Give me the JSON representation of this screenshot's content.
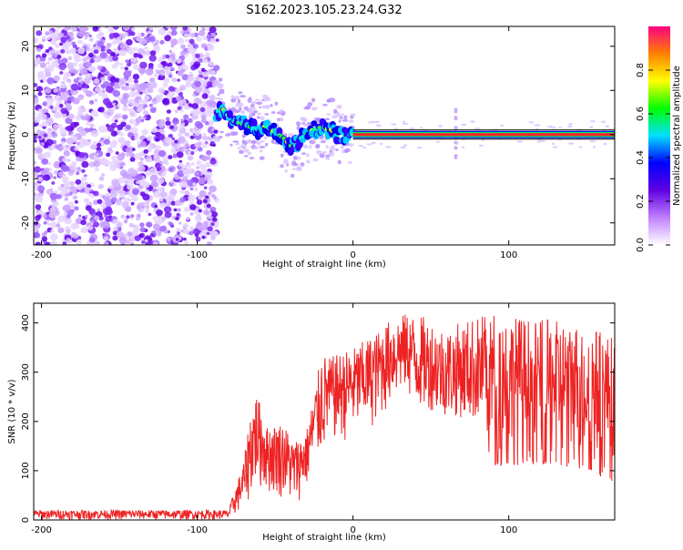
{
  "title": "S162.2023.105.23.24.G32",
  "chart_data": [
    {
      "type": "heatmap",
      "xlabel": "Height of straight line (km)",
      "ylabel": "Frequency (Hz)",
      "xlim": [
        -205,
        168
      ],
      "ylim": [
        -25,
        24.5
      ],
      "x_ticks": [
        -200,
        -100,
        0,
        100
      ],
      "y_ticks": [
        20,
        10,
        0,
        -10,
        -20
      ],
      "colorbar": {
        "label": "Normalized spectral amplitude",
        "range": [
          0,
          1
        ],
        "ticks": [
          "0.0",
          "0.2",
          "0.4",
          "0.6",
          "0.8"
        ],
        "tick_values": [
          0.0,
          0.2,
          0.4,
          0.6,
          0.8
        ],
        "colors": [
          "#ffffff",
          "#c080ff",
          "#6000e0",
          "#0000ff",
          "#00e0ff",
          "#00ff00",
          "#ffff00",
          "#ff8000",
          "#ff0080"
        ]
      },
      "ridge": {
        "x": [
          -88,
          -84,
          -80,
          -76,
          -72,
          -68,
          -64,
          -60,
          -56,
          -52,
          -48,
          -44,
          -40,
          -37,
          -34,
          -30,
          -26,
          -22,
          -18,
          -14,
          -10,
          -6,
          -2,
          0,
          20,
          60,
          100,
          140,
          168
        ],
        "y": [
          5,
          6,
          4,
          3,
          2.5,
          2,
          1.5,
          1,
          2,
          1,
          0,
          -1,
          -2.5,
          -2.5,
          -1,
          0,
          1,
          1.5,
          1.5,
          1,
          0,
          0,
          0,
          0,
          0,
          0,
          0,
          0,
          0
        ]
      },
      "grid": false
    },
    {
      "type": "line",
      "xlabel": "Height of straight line (km)",
      "ylabel": "SNR (10 * v/v)",
      "xlim": [
        -205,
        168
      ],
      "ylim": [
        0,
        440
      ],
      "x_ticks": [
        -200,
        -100,
        0,
        100
      ],
      "y_ticks": [
        0,
        100,
        200,
        300,
        400
      ],
      "series": [
        {
          "color": "#ee2222",
          "upper_envelope": {
            "x": [
              -205,
              -80,
              -70,
              -66,
              -62,
              -55,
              -45,
              -38,
              -30,
              -20,
              -15,
              0,
              15,
              25,
              35,
              50,
              60,
              75,
              84,
              90,
              110,
              130,
              150,
              168
            ],
            "y": [
              20,
              20,
              120,
              220,
              260,
              190,
              200,
              160,
              180,
              340,
              330,
              350,
              380,
              410,
              420,
              410,
              390,
              410,
              420,
              425,
              410,
              405,
              400,
              370
            ]
          },
          "lower_envelope": {
            "x": [
              -205,
              -80,
              -70,
              -66,
              -62,
              -55,
              -45,
              -38,
              -30,
              -20,
              -15,
              0,
              15,
              25,
              35,
              40,
              50,
              60,
              75,
              84,
              90,
              110,
              130,
              150,
              168
            ],
            "y": [
              0,
              0,
              20,
              40,
              60,
              50,
              40,
              20,
              60,
              120,
              150,
              160,
              190,
              230,
              250,
              200,
              190,
              180,
              170,
              150,
              110,
              110,
              110,
              100,
              70
            ]
          }
        }
      ],
      "grid": false
    }
  ]
}
